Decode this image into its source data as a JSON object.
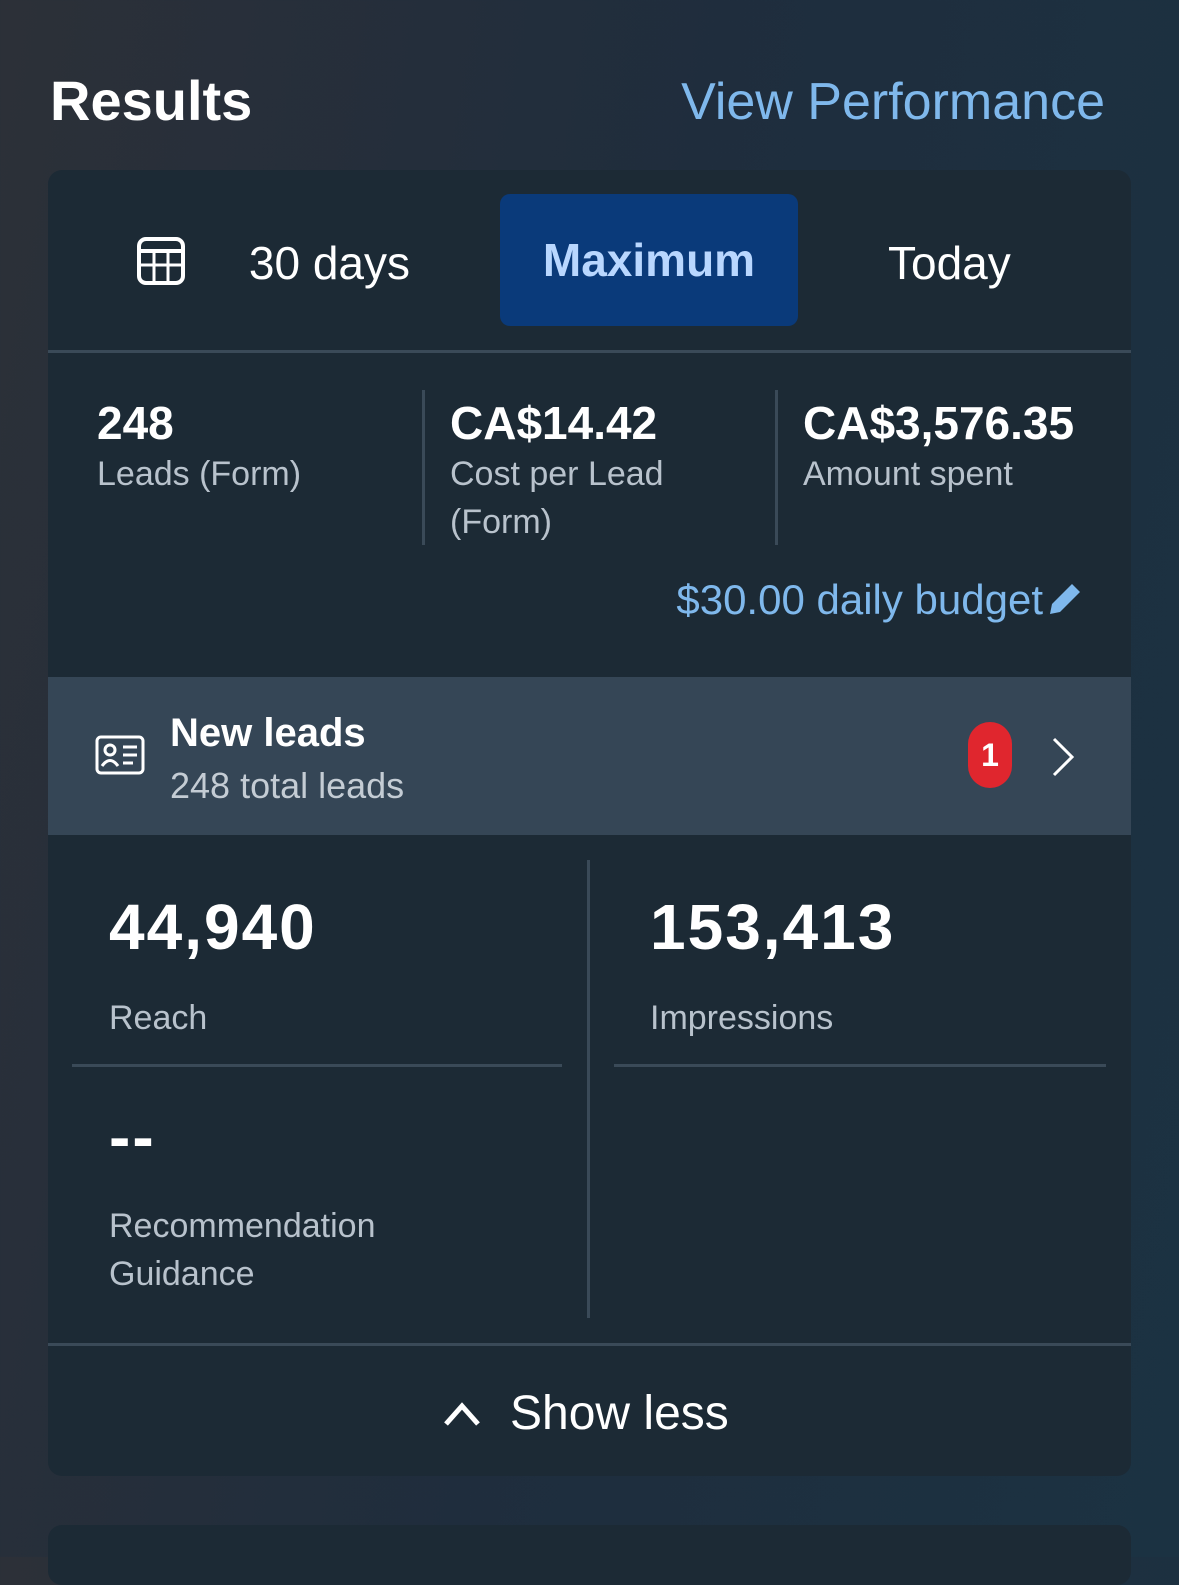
{
  "header": {
    "title": "Results",
    "link": "View Performance"
  },
  "tabs": [
    "30 days",
    "Maximum",
    "Today"
  ],
  "summary": [
    {
      "value": "248",
      "label": "Leads (Form)"
    },
    {
      "value": "CA$14.42",
      "label": "Cost per Lead (Form)"
    },
    {
      "value": "CA$3,576.35",
      "label": "Amount spent"
    }
  ],
  "budget": "$30.00 daily budget",
  "new_leads": {
    "title": "New leads",
    "subtitle": "248 total leads",
    "badge": "1"
  },
  "metrics": [
    {
      "value": "44,940",
      "label": "Reach"
    },
    {
      "value": "153,413",
      "label": "Impressions"
    },
    {
      "value": "--",
      "label": "Recommendation Guidance"
    }
  ],
  "footer": "Show less"
}
